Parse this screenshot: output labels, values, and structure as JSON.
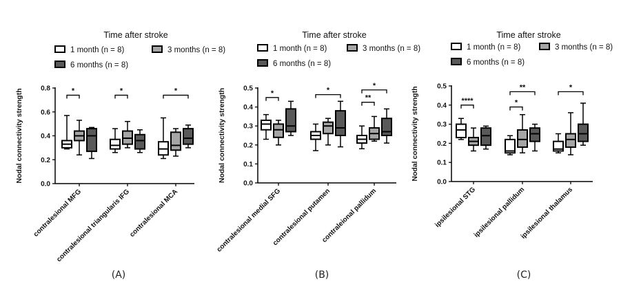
{
  "legend": {
    "title": "Time after stroke",
    "entries": [
      {
        "label": "1 month (n = 8)",
        "color": "#ffffff"
      },
      {
        "label": "3 months (n = 8)",
        "color": "#a6a6a6"
      },
      {
        "label": "6 months (n = 8)",
        "color": "#595959"
      }
    ]
  },
  "chart_data": [
    {
      "panel": "(A)",
      "type": "box",
      "title": "Time after stroke",
      "ylabel": "Nodal connectivity strength",
      "ylim": [
        0.0,
        0.8
      ],
      "yticks": [
        "0.0",
        "0.2",
        "0.4",
        "0.6",
        "0.8"
      ],
      "tick_values": [
        0.0,
        0.2,
        0.4,
        0.6,
        0.8
      ],
      "categories": [
        "contralesional MFG",
        "contralesional triangularis IFG",
        "contralesional MCA"
      ],
      "series": [
        {
          "name": "1 month (n = 8)",
          "boxes": [
            {
              "min": 0.29,
              "q1": 0.3,
              "median": 0.33,
              "q3": 0.36,
              "max": 0.57
            },
            {
              "min": 0.26,
              "q1": 0.29,
              "median": 0.32,
              "q3": 0.37,
              "max": 0.46
            },
            {
              "min": 0.21,
              "q1": 0.24,
              "median": 0.29,
              "q3": 0.35,
              "max": 0.55
            }
          ]
        },
        {
          "name": "3 months (n = 8)",
          "boxes": [
            {
              "min": 0.24,
              "q1": 0.36,
              "median": 0.4,
              "q3": 0.44,
              "max": 0.53
            },
            {
              "min": 0.3,
              "q1": 0.33,
              "median": 0.38,
              "q3": 0.44,
              "max": 0.52
            },
            {
              "min": 0.23,
              "q1": 0.28,
              "median": 0.32,
              "q3": 0.43,
              "max": 0.46
            }
          ]
        },
        {
          "name": "6 months (n = 8)",
          "boxes": [
            {
              "min": 0.21,
              "q1": 0.27,
              "median": 0.4,
              "q3": 0.46,
              "max": 0.47
            },
            {
              "min": 0.26,
              "q1": 0.29,
              "median": 0.36,
              "q3": 0.41,
              "max": 0.45
            },
            {
              "min": 0.3,
              "q1": 0.33,
              "median": 0.38,
              "q3": 0.46,
              "max": 0.49
            }
          ]
        }
      ],
      "annotations": [
        {
          "category": 0,
          "from": 0,
          "to": 1,
          "y": 0.74,
          "label": "*"
        },
        {
          "category": 1,
          "from": 0,
          "to": 1,
          "y": 0.74,
          "label": "*"
        },
        {
          "category": 2,
          "from": 0,
          "to": 2,
          "y": 0.74,
          "label": "*"
        }
      ]
    },
    {
      "panel": "(B)",
      "type": "box",
      "title": "Time after stroke",
      "ylabel": "Nodal connectivity strength",
      "ylim": [
        0.0,
        0.5
      ],
      "yticks": [
        "0.0",
        "0.1",
        "0.2",
        "0.3",
        "0.4",
        "0.5"
      ],
      "tick_values": [
        0.0,
        0.1,
        0.2,
        0.3,
        0.4,
        0.5
      ],
      "categories": [
        "contralesional medial SFG",
        "contralesional putamen",
        "contraleional pallidum"
      ],
      "series": [
        {
          "name": "1 month (n = 8)",
          "boxes": [
            {
              "min": 0.23,
              "q1": 0.28,
              "median": 0.31,
              "q3": 0.33,
              "max": 0.36
            },
            {
              "min": 0.17,
              "q1": 0.23,
              "median": 0.25,
              "q3": 0.27,
              "max": 0.31
            },
            {
              "min": 0.18,
              "q1": 0.21,
              "median": 0.23,
              "q3": 0.25,
              "max": 0.3
            }
          ]
        },
        {
          "name": "3 months (n = 8)",
          "boxes": [
            {
              "min": 0.2,
              "q1": 0.24,
              "median": 0.28,
              "q3": 0.31,
              "max": 0.33
            },
            {
              "min": 0.2,
              "q1": 0.26,
              "median": 0.3,
              "q3": 0.32,
              "max": 0.34
            },
            {
              "min": 0.22,
              "q1": 0.23,
              "median": 0.26,
              "q3": 0.29,
              "max": 0.35
            }
          ]
        },
        {
          "name": "6 months (n = 8)",
          "boxes": [
            {
              "min": 0.25,
              "q1": 0.27,
              "median": 0.3,
              "q3": 0.39,
              "max": 0.43
            },
            {
              "min": 0.19,
              "q1": 0.25,
              "median": 0.29,
              "q3": 0.38,
              "max": 0.43
            },
            {
              "min": 0.21,
              "q1": 0.25,
              "median": 0.27,
              "q3": 0.34,
              "max": 0.39
            }
          ]
        }
      ],
      "annotations": [
        {
          "category": 0,
          "from": 0,
          "to": 1,
          "y": 0.45,
          "label": "*"
        },
        {
          "category": 1,
          "from": 0,
          "to": 2,
          "y": 0.465,
          "label": "*"
        },
        {
          "category": 2,
          "from": 0,
          "to": 1,
          "y": 0.425,
          "label": "**"
        },
        {
          "category": 2,
          "from": 0,
          "to": 2,
          "y": 0.49,
          "label": "*"
        }
      ]
    },
    {
      "panel": "(C)",
      "type": "box",
      "title": "Time after stroke",
      "ylabel": "Nodal connectivity strength",
      "ylim": [
        0.0,
        0.5
      ],
      "yticks": [
        "0.0",
        "0.1",
        "0.2",
        "0.3",
        "0.4",
        "0.5"
      ],
      "tick_values": [
        0.0,
        0.1,
        0.2,
        0.3,
        0.4,
        0.5
      ],
      "categories": [
        "ipsilesional STG",
        "ipsilesional pallidum",
        "ipsilesional thalamus"
      ],
      "series": [
        {
          "name": "1 month (n = 8)",
          "boxes": [
            {
              "min": 0.22,
              "q1": 0.23,
              "median": 0.27,
              "q3": 0.3,
              "max": 0.33
            },
            {
              "min": 0.14,
              "q1": 0.15,
              "median": 0.16,
              "q3": 0.22,
              "max": 0.24
            },
            {
              "min": 0.15,
              "q1": 0.16,
              "median": 0.17,
              "q3": 0.21,
              "max": 0.25
            }
          ]
        },
        {
          "name": "3 months (n = 8)",
          "boxes": [
            {
              "min": 0.16,
              "q1": 0.19,
              "median": 0.21,
              "q3": 0.23,
              "max": 0.28
            },
            {
              "min": 0.15,
              "q1": 0.18,
              "median": 0.22,
              "q3": 0.27,
              "max": 0.35
            },
            {
              "min": 0.14,
              "q1": 0.18,
              "median": 0.22,
              "q3": 0.25,
              "max": 0.36
            }
          ]
        },
        {
          "name": "6 months (n = 8)",
          "boxes": [
            {
              "min": 0.17,
              "q1": 0.19,
              "median": 0.24,
              "q3": 0.28,
              "max": 0.29
            },
            {
              "min": 0.16,
              "q1": 0.21,
              "median": 0.25,
              "q3": 0.28,
              "max": 0.3
            },
            {
              "min": 0.19,
              "q1": 0.21,
              "median": 0.25,
              "q3": 0.3,
              "max": 0.41
            }
          ]
        }
      ],
      "annotations": [
        {
          "category": 0,
          "from": 0,
          "to": 1,
          "y": 0.4,
          "label": "****"
        },
        {
          "category": 1,
          "from": 0,
          "to": 1,
          "y": 0.39,
          "label": "*"
        },
        {
          "category": 1,
          "from": 0,
          "to": 2,
          "y": 0.47,
          "label": "**"
        },
        {
          "category": 2,
          "from": 0,
          "to": 2,
          "y": 0.47,
          "label": "*"
        }
      ]
    }
  ]
}
